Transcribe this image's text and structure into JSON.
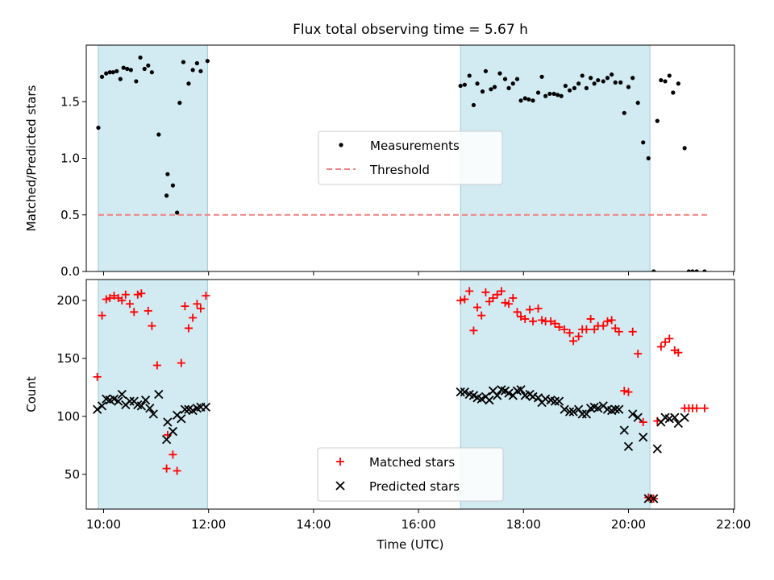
{
  "title": "Flux total observing time = 5.67 h",
  "colors": {
    "measurements": "#000000",
    "threshold": "#f08080",
    "matched": "#ff0000",
    "predicted": "#000000",
    "span": "#add8e6"
  },
  "chart_data": [
    {
      "type": "scatter",
      "ylabel": "Matched/Predicted stars",
      "xlim": [
        9.67,
        22.02
      ],
      "ylim": [
        0,
        2.0
      ],
      "yticks": [
        0.0,
        0.5,
        1.0,
        1.5
      ],
      "ytick_labels": [
        "0.0",
        "0.5",
        "1.0",
        "1.5"
      ],
      "legend_placement": "center",
      "legend": [
        {
          "label": "Measurements",
          "marker": "dot"
        },
        {
          "label": "Threshold",
          "marker": "dashed-line"
        }
      ],
      "spans": [
        [
          9.9,
          11.98
        ],
        [
          16.8,
          20.41
        ]
      ],
      "threshold": {
        "y": 0.5,
        "x": [
          9.9,
          21.5
        ]
      },
      "series": [
        {
          "name": "Measurements",
          "marker": "dot",
          "points": [
            [
              9.9,
              1.27
            ],
            [
              9.97,
              1.72
            ],
            [
              10.05,
              1.75
            ],
            [
              10.12,
              1.76
            ],
            [
              10.18,
              1.76
            ],
            [
              10.25,
              1.77
            ],
            [
              10.32,
              1.7
            ],
            [
              10.38,
              1.8
            ],
            [
              10.45,
              1.79
            ],
            [
              10.52,
              1.78
            ],
            [
              10.62,
              1.68
            ],
            [
              10.7,
              1.89
            ],
            [
              10.78,
              1.79
            ],
            [
              10.85,
              1.82
            ],
            [
              10.92,
              1.76
            ],
            [
              11.05,
              1.21
            ],
            [
              11.2,
              0.67
            ],
            [
              11.22,
              0.86
            ],
            [
              11.32,
              0.76
            ],
            [
              11.4,
              0.52
            ],
            [
              11.45,
              1.49
            ],
            [
              11.52,
              1.85
            ],
            [
              11.62,
              1.66
            ],
            [
              11.7,
              1.78
            ],
            [
              11.78,
              1.84
            ],
            [
              11.85,
              1.77
            ],
            [
              11.98,
              1.86
            ],
            [
              16.8,
              1.64
            ],
            [
              16.88,
              1.65
            ],
            [
              16.97,
              1.73
            ],
            [
              17.05,
              1.47
            ],
            [
              17.12,
              1.66
            ],
            [
              17.22,
              1.59
            ],
            [
              17.28,
              1.77
            ],
            [
              17.38,
              1.61
            ],
            [
              17.45,
              1.63
            ],
            [
              17.55,
              1.75
            ],
            [
              17.65,
              1.7
            ],
            [
              17.72,
              1.62
            ],
            [
              17.8,
              1.66
            ],
            [
              17.88,
              1.7
            ],
            [
              17.95,
              1.51
            ],
            [
              18.03,
              1.53
            ],
            [
              18.1,
              1.52
            ],
            [
              18.18,
              1.51
            ],
            [
              18.28,
              1.58
            ],
            [
              18.35,
              1.72
            ],
            [
              18.42,
              1.55
            ],
            [
              18.5,
              1.57
            ],
            [
              18.58,
              1.57
            ],
            [
              18.65,
              1.56
            ],
            [
              18.72,
              1.55
            ],
            [
              18.8,
              1.64
            ],
            [
              18.88,
              1.6
            ],
            [
              18.97,
              1.62
            ],
            [
              19.05,
              1.66
            ],
            [
              19.12,
              1.73
            ],
            [
              19.2,
              1.62
            ],
            [
              19.28,
              1.71
            ],
            [
              19.35,
              1.66
            ],
            [
              19.42,
              1.69
            ],
            [
              19.52,
              1.68
            ],
            [
              19.6,
              1.71
            ],
            [
              19.68,
              1.74
            ],
            [
              19.75,
              1.67
            ],
            [
              19.85,
              1.67
            ],
            [
              19.92,
              1.4
            ],
            [
              20.0,
              1.63
            ],
            [
              20.08,
              1.71
            ],
            [
              20.18,
              1.49
            ],
            [
              20.28,
              1.14
            ],
            [
              20.38,
              1.0
            ],
            [
              20.48,
              0.0
            ],
            [
              20.55,
              1.33
            ],
            [
              20.62,
              1.69
            ],
            [
              20.7,
              1.68
            ],
            [
              20.78,
              1.73
            ],
            [
              20.85,
              1.58
            ],
            [
              20.95,
              1.66
            ],
            [
              21.07,
              1.09
            ],
            [
              21.15,
              0.0
            ],
            [
              21.22,
              0.0
            ],
            [
              21.3,
              0.0
            ],
            [
              21.45,
              0.0
            ]
          ]
        }
      ]
    },
    {
      "type": "scatter",
      "xlabel": "Time (UTC)",
      "ylabel": "Count",
      "xlim": [
        9.67,
        22.02
      ],
      "ylim": [
        20,
        218
      ],
      "yticks": [
        50,
        100,
        150,
        200
      ],
      "ytick_labels": [
        "50",
        "100",
        "150",
        "200"
      ],
      "xticks": [
        10,
        12,
        14,
        16,
        18,
        20,
        22
      ],
      "xtick_labels": [
        "10:00",
        "12:00",
        "14:00",
        "16:00",
        "18:00",
        "20:00",
        "22:00"
      ],
      "legend_placement": "lower center",
      "legend": [
        {
          "label": "Matched stars",
          "marker": "plus"
        },
        {
          "label": "Predicted stars",
          "marker": "x"
        }
      ],
      "spans": [
        [
          9.9,
          11.98
        ],
        [
          16.8,
          20.41
        ]
      ],
      "series": [
        {
          "name": "Matched stars",
          "marker": "plus",
          "points": [
            [
              9.88,
              134
            ],
            [
              9.97,
              187
            ],
            [
              10.05,
              201
            ],
            [
              10.12,
              202
            ],
            [
              10.2,
              204
            ],
            [
              10.28,
              202
            ],
            [
              10.35,
              200
            ],
            [
              10.42,
              205
            ],
            [
              10.5,
              197
            ],
            [
              10.58,
              190
            ],
            [
              10.65,
              205
            ],
            [
              10.72,
              206
            ],
            [
              10.85,
              191
            ],
            [
              10.92,
              178
            ],
            [
              11.02,
              144
            ],
            [
              11.2,
              55
            ],
            [
              11.22,
              84
            ],
            [
              11.32,
              67
            ],
            [
              11.4,
              53
            ],
            [
              11.48,
              146
            ],
            [
              11.55,
              195
            ],
            [
              11.62,
              176
            ],
            [
              11.7,
              185
            ],
            [
              11.78,
              197
            ],
            [
              11.85,
              193
            ],
            [
              11.95,
              204
            ],
            [
              16.8,
              200
            ],
            [
              16.88,
              201
            ],
            [
              16.97,
              208
            ],
            [
              17.05,
              174
            ],
            [
              17.12,
              194
            ],
            [
              17.2,
              187
            ],
            [
              17.28,
              207
            ],
            [
              17.35,
              199
            ],
            [
              17.42,
              202
            ],
            [
              17.5,
              205
            ],
            [
              17.58,
              208
            ],
            [
              17.65,
              198
            ],
            [
              17.72,
              197
            ],
            [
              17.8,
              202
            ],
            [
              17.88,
              190
            ],
            [
              17.95,
              186
            ],
            [
              18.03,
              184
            ],
            [
              18.12,
              192
            ],
            [
              18.18,
              182
            ],
            [
              18.28,
              193
            ],
            [
              18.35,
              183
            ],
            [
              18.42,
              182
            ],
            [
              18.52,
              182
            ],
            [
              18.6,
              180
            ],
            [
              18.68,
              177
            ],
            [
              18.78,
              175
            ],
            [
              18.88,
              172
            ],
            [
              18.95,
              165
            ],
            [
              19.05,
              169
            ],
            [
              19.12,
              175
            ],
            [
              19.2,
              175
            ],
            [
              19.28,
              184
            ],
            [
              19.35,
              175
            ],
            [
              19.42,
              178
            ],
            [
              19.52,
              178
            ],
            [
              19.6,
              182
            ],
            [
              19.68,
              183
            ],
            [
              19.75,
              176
            ],
            [
              19.82,
              173
            ],
            [
              19.92,
              122
            ],
            [
              20.0,
              121
            ],
            [
              20.08,
              173
            ],
            [
              20.18,
              154
            ],
            [
              20.28,
              95
            ],
            [
              20.38,
              30
            ],
            [
              20.48,
              29
            ],
            [
              20.55,
              96
            ],
            [
              20.62,
              160
            ],
            [
              20.7,
              164
            ],
            [
              20.78,
              167
            ],
            [
              20.88,
              157
            ],
            [
              20.95,
              155
            ],
            [
              21.07,
              107
            ],
            [
              21.15,
              107
            ],
            [
              21.22,
              107
            ],
            [
              21.3,
              107
            ],
            [
              21.45,
              107
            ]
          ]
        },
        {
          "name": "Predicted stars",
          "marker": "x",
          "points": [
            [
              9.88,
              106
            ],
            [
              9.97,
              109
            ],
            [
              10.05,
              115
            ],
            [
              10.12,
              114
            ],
            [
              10.2,
              115
            ],
            [
              10.28,
              113
            ],
            [
              10.35,
              119
            ],
            [
              10.42,
              110
            ],
            [
              10.5,
              113
            ],
            [
              10.58,
              113
            ],
            [
              10.65,
              110
            ],
            [
              10.72,
              109
            ],
            [
              10.8,
              114
            ],
            [
              10.88,
              107
            ],
            [
              10.95,
              102
            ],
            [
              11.05,
              119
            ],
            [
              11.2,
              80
            ],
            [
              11.22,
              95
            ],
            [
              11.32,
              87
            ],
            [
              11.4,
              101
            ],
            [
              11.48,
              98
            ],
            [
              11.55,
              106
            ],
            [
              11.62,
              106
            ],
            [
              11.7,
              105
            ],
            [
              11.78,
              107
            ],
            [
              11.85,
              108
            ],
            [
              11.95,
              108
            ],
            [
              16.8,
              121
            ],
            [
              16.88,
              121
            ],
            [
              16.97,
              119
            ],
            [
              17.05,
              118
            ],
            [
              17.12,
              116
            ],
            [
              17.2,
              115
            ],
            [
              17.28,
              117
            ],
            [
              17.35,
              114
            ],
            [
              17.42,
              122
            ],
            [
              17.5,
              118
            ],
            [
              17.58,
              123
            ],
            [
              17.65,
              122
            ],
            [
              17.72,
              120
            ],
            [
              17.8,
              118
            ],
            [
              17.88,
              122
            ],
            [
              17.95,
              123
            ],
            [
              18.03,
              118
            ],
            [
              18.12,
              119
            ],
            [
              18.18,
              117
            ],
            [
              18.28,
              116
            ],
            [
              18.35,
              112
            ],
            [
              18.42,
              115
            ],
            [
              18.52,
              114
            ],
            [
              18.6,
              113
            ],
            [
              18.68,
              113
            ],
            [
              18.78,
              106
            ],
            [
              18.88,
              104
            ],
            [
              18.95,
              104
            ],
            [
              19.05,
              106
            ],
            [
              19.12,
              102
            ],
            [
              19.2,
              102
            ],
            [
              19.28,
              107
            ],
            [
              19.35,
              108
            ],
            [
              19.42,
              107
            ],
            [
              19.52,
              109
            ],
            [
              19.6,
              106
            ],
            [
              19.68,
              105
            ],
            [
              19.75,
              106
            ],
            [
              19.82,
              106
            ],
            [
              19.92,
              88
            ],
            [
              20.0,
              74
            ],
            [
              20.08,
              102
            ],
            [
              20.18,
              99
            ],
            [
              20.28,
              82
            ],
            [
              20.38,
              29
            ],
            [
              20.48,
              29
            ],
            [
              20.55,
              72
            ],
            [
              20.62,
              95
            ],
            [
              20.7,
              99
            ],
            [
              20.78,
              98
            ],
            [
              20.88,
              99
            ],
            [
              20.95,
              94
            ],
            [
              21.07,
              99
            ]
          ]
        }
      ]
    }
  ]
}
